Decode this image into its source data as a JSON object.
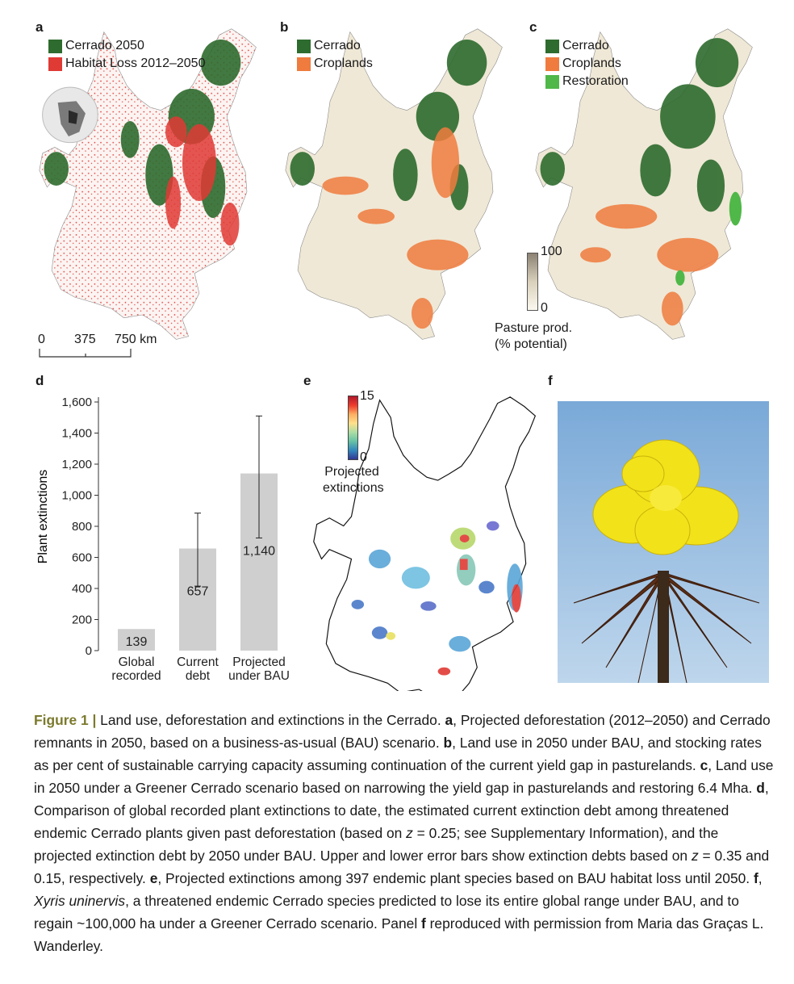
{
  "panels": {
    "a": "a",
    "b": "b",
    "c": "c",
    "d": "d",
    "e": "e",
    "f": "f"
  },
  "colors": {
    "cerrado": "#2e6b2e",
    "habitat_loss": "#e03a35",
    "croplands": "#f07b3e",
    "restoration": "#4fb848",
    "bar": "#cfcfcf",
    "caption_heading": "#7b7a2e"
  },
  "legend_a": [
    {
      "label": "Cerrado 2050",
      "color": "#2e6b2e"
    },
    {
      "label": "Habitat Loss 2012–2050",
      "color": "#e03a35"
    }
  ],
  "legend_b": [
    {
      "label": "Cerrado",
      "color": "#2e6b2e"
    },
    {
      "label": "Croplands",
      "color": "#f07b3e"
    }
  ],
  "legend_c": [
    {
      "label": "Cerrado",
      "color": "#2e6b2e"
    },
    {
      "label": "Croplands",
      "color": "#f07b3e"
    },
    {
      "label": "Restoration",
      "color": "#4fb848"
    }
  ],
  "scalebar": {
    "t0": "0",
    "t1": "375",
    "t2": "750 km"
  },
  "pasture_scale": {
    "max": "100",
    "min": "0",
    "title1": "Pasture prod.",
    "title2": "(% potential)"
  },
  "extinction_scale": {
    "max": "15",
    "min": "0",
    "title1": "Projected",
    "title2": "extinctions"
  },
  "chart_data": {
    "type": "bar",
    "categories": [
      [
        "Global",
        "recorded"
      ],
      [
        "Current",
        "debt"
      ],
      [
        "Projected",
        "under BAU"
      ]
    ],
    "values": [
      139,
      657,
      1140
    ],
    "value_labels": [
      "139",
      "657",
      "1,140"
    ],
    "error_upper": [
      null,
      885,
      1510
    ],
    "error_lower": [
      null,
      415,
      725
    ],
    "ylabel": "Plant extinctions",
    "ylim": [
      0,
      1600
    ],
    "yticks": [
      0,
      200,
      400,
      600,
      800,
      1000,
      1200,
      1400,
      1600
    ],
    "ytick_labels": [
      "0",
      "200",
      "400",
      "600",
      "800",
      "1,000",
      "1,200",
      "1,400",
      "1,600"
    ]
  },
  "caption": {
    "heading": "Figure 1 |",
    "s1": " Land use, deforestation and extinctions in the Cerrado. ",
    "la": "a",
    "s2": ", Projected deforestation (2012–2050) and Cerrado remnants in 2050, based on a business-as-usual (BAU) scenario. ",
    "lb": "b",
    "s3": ", Land use in 2050 under BAU, and stocking rates as per cent of sustainable carrying capacity assuming continuation of the current yield gap in pasturelands. ",
    "lc": "c",
    "s4": ", Land use in 2050 under a Greener Cerrado scenario based on narrowing the yield gap in pasturelands and restoring 6.4 Mha. ",
    "ld": "d",
    "s5": ", Comparison of global recorded plant extinctions to date, the estimated current extinction debt among threatened endemic Cerrado plants given past deforestation (based on ",
    "z1": "z",
    "s6": " = 0.25; see Supplementary Information), and the projected extinction debt by 2050 under BAU. Upper and lower error bars show extinction debts based on ",
    "z2": "z",
    "s7": " = 0.35 and 0.15, respectively. ",
    "le": "e",
    "s8": ", Projected extinctions among 397 endemic plant species based on BAU habitat loss until 2050. ",
    "lf": "f",
    "s9": ", ",
    "species": "Xyris uninervis",
    "s10": ", a threatened endemic Cerrado species predicted to lose its entire global range under BAU, and to regain ~100,000 ha under a Greener Cerrado scenario. Panel ",
    "lf2": "f",
    "s11": " reproduced with permission from Maria das Graças L. Wanderley."
  }
}
